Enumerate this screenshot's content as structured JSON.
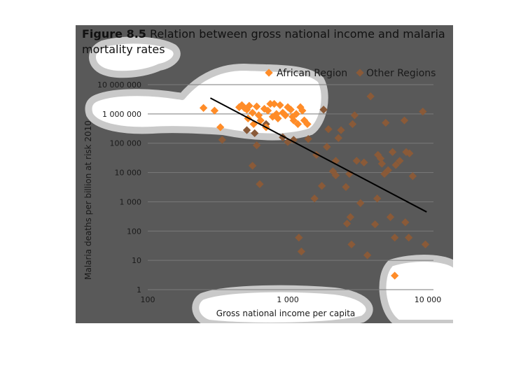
{
  "figure": {
    "title_bold": "Figure 8.5",
    "title_rest": " Relation between gross national income and malaria mortality rates"
  },
  "colors": {
    "background": "#595959",
    "african": "#ff8c28",
    "other": "#8a5a38",
    "highlight": "#ffffff",
    "trend": "#000000"
  },
  "chart_data": {
    "type": "scatter",
    "xlabel": "Gross national income per capita",
    "ylabel": "Malaria deaths per billion at risk 2010",
    "x_scale": "log",
    "y_scale": "log",
    "xlim": [
      100,
      10000
    ],
    "ylim": [
      1,
      10000000
    ],
    "x_ticks": [
      {
        "value": 100,
        "label": "100"
      },
      {
        "value": 1000,
        "label": "1 000"
      },
      {
        "value": 10000,
        "label": "10 000"
      }
    ],
    "y_ticks": [
      {
        "value": 10000000,
        "label": "10 000 000"
      },
      {
        "value": 1000000,
        "label": "1 000 000"
      },
      {
        "value": 100000,
        "label": "100 000"
      },
      {
        "value": 10000,
        "label": "10 000"
      },
      {
        "value": 1000,
        "label": "1 000"
      },
      {
        "value": 100,
        "label": "100"
      },
      {
        "value": 10,
        "label": "10"
      },
      {
        "value": 1,
        "label": "1"
      }
    ],
    "grid": true,
    "legend_position": "top-right",
    "series": [
      {
        "name": "African Region",
        "color": "#ff8c28",
        "points": [
          [
            250,
            1600000
          ],
          [
            300,
            1300000
          ],
          [
            330,
            350000
          ],
          [
            450,
            1700000
          ],
          [
            470,
            2000000
          ],
          [
            490,
            1600000
          ],
          [
            510,
            1400000
          ],
          [
            520,
            700000
          ],
          [
            530,
            1900000
          ],
          [
            560,
            1100000
          ],
          [
            570,
            450000
          ],
          [
            600,
            1800000
          ],
          [
            620,
            900000
          ],
          [
            640,
            600000
          ],
          [
            680,
            1500000
          ],
          [
            700,
            350000
          ],
          [
            720,
            1300000
          ],
          [
            750,
            2200000
          ],
          [
            780,
            800000
          ],
          [
            800,
            2200000
          ],
          [
            830,
            1000000
          ],
          [
            850,
            700000
          ],
          [
            880,
            2000000
          ],
          [
            920,
            1100000
          ],
          [
            960,
            900000
          ],
          [
            1000,
            1700000
          ],
          [
            1050,
            1400000
          ],
          [
            1080,
            800000
          ],
          [
            1100,
            600000
          ],
          [
            1150,
            1000000
          ],
          [
            1180,
            450000
          ],
          [
            1230,
            1700000
          ],
          [
            1270,
            1300000
          ],
          [
            1310,
            600000
          ],
          [
            1380,
            450000
          ],
          [
            5800,
            3
          ]
        ]
      },
      {
        "name": "Other Regions",
        "color": "#8a5a38",
        "points": [
          [
            340,
            130000
          ],
          [
            510,
            280000
          ],
          [
            580,
            220000
          ],
          [
            600,
            85000
          ],
          [
            560,
            17000
          ],
          [
            630,
            4000
          ],
          [
            700,
            450000
          ],
          [
            920,
            160000
          ],
          [
            1000,
            110000
          ],
          [
            1100,
            130000
          ],
          [
            1200,
            60
          ],
          [
            1250,
            20
          ],
          [
            1400,
            140000
          ],
          [
            1550,
            1300
          ],
          [
            1600,
            40000
          ],
          [
            1750,
            3500
          ],
          [
            1800,
            1400000
          ],
          [
            1900,
            75000
          ],
          [
            1950,
            300000
          ],
          [
            2100,
            11000
          ],
          [
            2200,
            8000
          ],
          [
            2200,
            25000
          ],
          [
            2300,
            150000
          ],
          [
            2400,
            280000
          ],
          [
            2600,
            3200
          ],
          [
            2650,
            180
          ],
          [
            2750,
            9000
          ],
          [
            2800,
            300
          ],
          [
            2850,
            35
          ],
          [
            2900,
            450000
          ],
          [
            3000,
            900000
          ],
          [
            3100,
            25000
          ],
          [
            3300,
            900
          ],
          [
            3500,
            22000
          ],
          [
            3700,
            15
          ],
          [
            3900,
            4000000
          ],
          [
            4200,
            170
          ],
          [
            4350,
            1300
          ],
          [
            4400,
            40000
          ],
          [
            4600,
            30000
          ],
          [
            4700,
            20000
          ],
          [
            4900,
            9000
          ],
          [
            5000,
            500000
          ],
          [
            5200,
            12000
          ],
          [
            5400,
            300
          ],
          [
            5600,
            50000
          ],
          [
            5800,
            60
          ],
          [
            5900,
            18000
          ],
          [
            6300,
            25000
          ],
          [
            6800,
            600000
          ],
          [
            6900,
            200
          ],
          [
            7000,
            50000
          ],
          [
            7300,
            60
          ],
          [
            7400,
            45000
          ],
          [
            7800,
            7500
          ],
          [
            9200,
            1200000
          ],
          [
            9600,
            35
          ]
        ]
      }
    ],
    "trend_line": {
      "x": [
        280,
        9800
      ],
      "y": [
        3500000,
        450
      ]
    }
  }
}
